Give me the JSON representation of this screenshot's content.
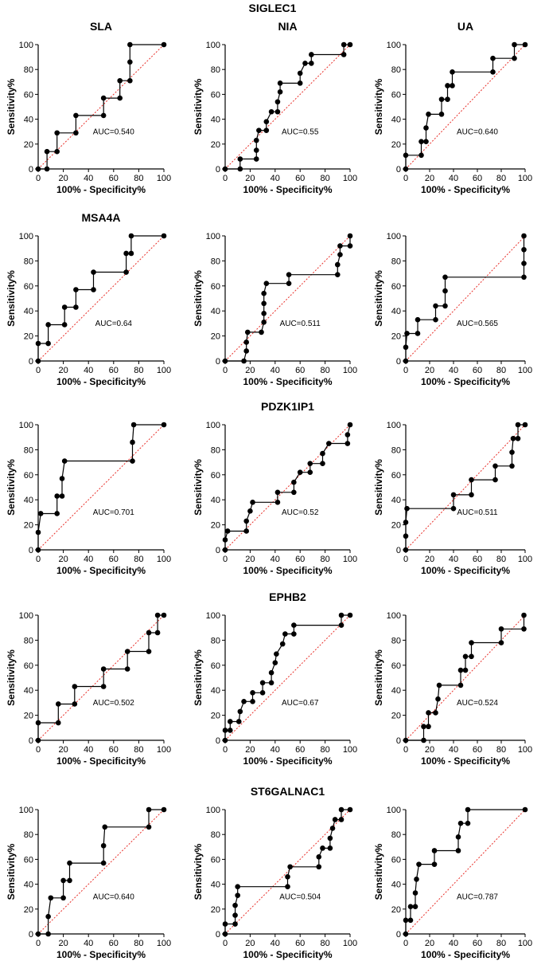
{
  "figure_title": "SIGLEC1",
  "axis": {
    "xlabel": "100% - Specificity%",
    "ylabel": "Sensitivity%",
    "ticks": [
      0,
      20,
      40,
      60,
      80,
      100
    ]
  },
  "colors": {
    "curve": "#000000",
    "reference": "#e8302a"
  },
  "chart_data": [
    {
      "type": "line",
      "row": 0,
      "col": 0,
      "title": "SLA",
      "auc": "AUC=0.540",
      "xlim": [
        0,
        100
      ],
      "ylim": [
        0,
        100
      ],
      "points": [
        [
          0,
          0
        ],
        [
          7,
          0
        ],
        [
          7,
          14
        ],
        [
          15,
          14
        ],
        [
          15,
          29
        ],
        [
          30,
          29
        ],
        [
          30,
          43
        ],
        [
          52,
          43
        ],
        [
          52,
          57
        ],
        [
          65,
          57
        ],
        [
          65,
          71
        ],
        [
          73,
          71
        ],
        [
          73,
          86
        ],
        [
          73,
          100
        ],
        [
          100,
          100
        ]
      ]
    },
    {
      "type": "line",
      "row": 0,
      "col": 1,
      "title": "NIA",
      "auc": "AUC=0.55",
      "xlim": [
        0,
        100
      ],
      "ylim": [
        0,
        100
      ],
      "points": [
        [
          0,
          0
        ],
        [
          12,
          0
        ],
        [
          12,
          8
        ],
        [
          25,
          8
        ],
        [
          25,
          15
        ],
        [
          25,
          23
        ],
        [
          27,
          31
        ],
        [
          33,
          31
        ],
        [
          33,
          38
        ],
        [
          37,
          46
        ],
        [
          42,
          46
        ],
        [
          42,
          54
        ],
        [
          44,
          62
        ],
        [
          44,
          69
        ],
        [
          60,
          69
        ],
        [
          60,
          77
        ],
        [
          64,
          85
        ],
        [
          69,
          85
        ],
        [
          69,
          92
        ],
        [
          95,
          92
        ],
        [
          95,
          100
        ],
        [
          100,
          100
        ]
      ]
    },
    {
      "type": "line",
      "row": 0,
      "col": 2,
      "title": "UA",
      "auc": "AUC=0.640",
      "xlim": [
        0,
        100
      ],
      "ylim": [
        0,
        100
      ],
      "points": [
        [
          0,
          0
        ],
        [
          0,
          11
        ],
        [
          13,
          11
        ],
        [
          13,
          22
        ],
        [
          17,
          22
        ],
        [
          17,
          33
        ],
        [
          19,
          44
        ],
        [
          30,
          44
        ],
        [
          30,
          56
        ],
        [
          35,
          56
        ],
        [
          35,
          67
        ],
        [
          39,
          67
        ],
        [
          39,
          78
        ],
        [
          73,
          78
        ],
        [
          73,
          89
        ],
        [
          91,
          89
        ],
        [
          91,
          100
        ],
        [
          100,
          100
        ]
      ]
    },
    {
      "type": "line",
      "row": 1,
      "col": 0,
      "title": "MSA4A",
      "auc": "AUC=0.64",
      "xlim": [
        0,
        100
      ],
      "ylim": [
        0,
        100
      ],
      "points": [
        [
          0,
          0
        ],
        [
          0,
          14
        ],
        [
          8,
          14
        ],
        [
          8,
          29
        ],
        [
          21,
          29
        ],
        [
          21,
          43
        ],
        [
          30,
          43
        ],
        [
          30,
          57
        ],
        [
          44,
          57
        ],
        [
          44,
          71
        ],
        [
          70,
          71
        ],
        [
          70,
          86
        ],
        [
          74,
          86
        ],
        [
          74,
          100
        ],
        [
          100,
          100
        ]
      ]
    },
    {
      "type": "line",
      "row": 1,
      "col": 1,
      "title": "",
      "auc": "AUC=0.511",
      "xlim": [
        0,
        100
      ],
      "ylim": [
        0,
        100
      ],
      "points": [
        [
          0,
          0
        ],
        [
          15,
          0
        ],
        [
          17,
          8
        ],
        [
          17,
          15
        ],
        [
          18,
          23
        ],
        [
          29,
          23
        ],
        [
          31,
          31
        ],
        [
          31,
          38
        ],
        [
          31,
          46
        ],
        [
          31,
          54
        ],
        [
          33,
          62
        ],
        [
          51,
          62
        ],
        [
          51,
          69
        ],
        [
          90,
          69
        ],
        [
          90,
          77
        ],
        [
          92,
          85
        ],
        [
          92,
          92
        ],
        [
          100,
          92
        ],
        [
          100,
          100
        ]
      ]
    },
    {
      "type": "line",
      "row": 1,
      "col": 2,
      "title": "",
      "auc": "AUC=0.565",
      "xlim": [
        0,
        100
      ],
      "ylim": [
        0,
        100
      ],
      "points": [
        [
          0,
          0
        ],
        [
          0,
          11
        ],
        [
          1,
          22
        ],
        [
          10,
          22
        ],
        [
          10,
          33
        ],
        [
          25,
          33
        ],
        [
          25,
          44
        ],
        [
          33,
          44
        ],
        [
          33,
          56
        ],
        [
          33,
          67
        ],
        [
          99,
          67
        ],
        [
          99,
          78
        ],
        [
          99,
          89
        ],
        [
          99,
          100
        ]
      ]
    },
    {
      "type": "line",
      "row": 2,
      "col": 0,
      "title": "",
      "auc": "AUC=0.701",
      "xlim": [
        0,
        100
      ],
      "ylim": [
        0,
        100
      ],
      "points": [
        [
          0,
          0
        ],
        [
          0,
          14
        ],
        [
          2,
          29
        ],
        [
          15,
          29
        ],
        [
          15,
          43
        ],
        [
          19,
          43
        ],
        [
          19,
          57
        ],
        [
          21,
          71
        ],
        [
          75,
          71
        ],
        [
          75,
          86
        ],
        [
          76,
          100
        ],
        [
          100,
          100
        ]
      ]
    },
    {
      "type": "line",
      "row": 2,
      "col": 1,
      "title": "PDZK1IP1",
      "auc": "AUC=0.52",
      "xlim": [
        0,
        100
      ],
      "ylim": [
        0,
        100
      ],
      "points": [
        [
          0,
          0
        ],
        [
          0,
          8
        ],
        [
          2,
          15
        ],
        [
          17,
          15
        ],
        [
          17,
          23
        ],
        [
          20,
          31
        ],
        [
          22,
          38
        ],
        [
          42,
          38
        ],
        [
          42,
          46
        ],
        [
          55,
          46
        ],
        [
          55,
          54
        ],
        [
          60,
          62
        ],
        [
          68,
          62
        ],
        [
          68,
          69
        ],
        [
          78,
          69
        ],
        [
          78,
          77
        ],
        [
          83,
          85
        ],
        [
          98,
          85
        ],
        [
          98,
          92
        ],
        [
          100,
          100
        ]
      ]
    },
    {
      "type": "line",
      "row": 2,
      "col": 2,
      "title": "",
      "auc": "AUC=0.511",
      "xlim": [
        0,
        100
      ],
      "ylim": [
        0,
        100
      ],
      "points": [
        [
          0,
          0
        ],
        [
          0,
          11
        ],
        [
          0,
          22
        ],
        [
          1,
          33
        ],
        [
          40,
          33
        ],
        [
          40,
          44
        ],
        [
          55,
          44
        ],
        [
          55,
          56
        ],
        [
          75,
          56
        ],
        [
          75,
          67
        ],
        [
          89,
          67
        ],
        [
          89,
          78
        ],
        [
          90,
          89
        ],
        [
          94,
          89
        ],
        [
          94,
          100
        ],
        [
          100,
          100
        ]
      ]
    },
    {
      "type": "line",
      "row": 3,
      "col": 0,
      "title": "",
      "auc": "AUC=0.502",
      "xlim": [
        0,
        100
      ],
      "ylim": [
        0,
        100
      ],
      "points": [
        [
          0,
          0
        ],
        [
          0,
          14
        ],
        [
          16,
          14
        ],
        [
          16,
          29
        ],
        [
          29,
          29
        ],
        [
          29,
          43
        ],
        [
          52,
          43
        ],
        [
          52,
          57
        ],
        [
          71,
          57
        ],
        [
          71,
          71
        ],
        [
          88,
          71
        ],
        [
          88,
          86
        ],
        [
          95,
          86
        ],
        [
          95,
          100
        ],
        [
          100,
          100
        ]
      ]
    },
    {
      "type": "line",
      "row": 3,
      "col": 1,
      "title": "EPHB2",
      "auc": "AUC=0.67",
      "xlim": [
        0,
        100
      ],
      "ylim": [
        0,
        100
      ],
      "points": [
        [
          0,
          0
        ],
        [
          0,
          8
        ],
        [
          4,
          8
        ],
        [
          4,
          15
        ],
        [
          11,
          15
        ],
        [
          12,
          23
        ],
        [
          15,
          31
        ],
        [
          22,
          31
        ],
        [
          22,
          38
        ],
        [
          30,
          38
        ],
        [
          30,
          46
        ],
        [
          37,
          46
        ],
        [
          37,
          54
        ],
        [
          40,
          62
        ],
        [
          41,
          69
        ],
        [
          46,
          77
        ],
        [
          48,
          85
        ],
        [
          55,
          85
        ],
        [
          55,
          92
        ],
        [
          93,
          92
        ],
        [
          93,
          100
        ],
        [
          100,
          100
        ]
      ]
    },
    {
      "type": "line",
      "row": 3,
      "col": 2,
      "title": "",
      "auc": "AUC=0.524",
      "xlim": [
        0,
        100
      ],
      "ylim": [
        0,
        100
      ],
      "points": [
        [
          0,
          0
        ],
        [
          15,
          0
        ],
        [
          15,
          11
        ],
        [
          19,
          11
        ],
        [
          19,
          22
        ],
        [
          25,
          22
        ],
        [
          27,
          33
        ],
        [
          28,
          44
        ],
        [
          46,
          44
        ],
        [
          46,
          56
        ],
        [
          50,
          56
        ],
        [
          50,
          67
        ],
        [
          55,
          67
        ],
        [
          55,
          78
        ],
        [
          80,
          78
        ],
        [
          80,
          89
        ],
        [
          99,
          89
        ],
        [
          99,
          100
        ]
      ]
    },
    {
      "type": "line",
      "row": 4,
      "col": 0,
      "title": "",
      "auc": "AUC=0.640",
      "xlim": [
        0,
        100
      ],
      "ylim": [
        0,
        100
      ],
      "points": [
        [
          0,
          0
        ],
        [
          8,
          0
        ],
        [
          8,
          14
        ],
        [
          10,
          29
        ],
        [
          20,
          29
        ],
        [
          20,
          43
        ],
        [
          25,
          43
        ],
        [
          25,
          57
        ],
        [
          52,
          57
        ],
        [
          52,
          71
        ],
        [
          53,
          86
        ],
        [
          88,
          86
        ],
        [
          88,
          100
        ],
        [
          100,
          100
        ]
      ]
    },
    {
      "type": "line",
      "row": 4,
      "col": 1,
      "title": "ST6GALNAC1",
      "auc": "AUC=0.504",
      "xlim": [
        0,
        100
      ],
      "ylim": [
        0,
        100
      ],
      "points": [
        [
          0,
          0
        ],
        [
          0,
          8
        ],
        [
          8,
          8
        ],
        [
          8,
          15
        ],
        [
          8,
          23
        ],
        [
          10,
          31
        ],
        [
          10,
          38
        ],
        [
          50,
          38
        ],
        [
          50,
          46
        ],
        [
          52,
          54
        ],
        [
          75,
          54
        ],
        [
          75,
          62
        ],
        [
          78,
          69
        ],
        [
          84,
          69
        ],
        [
          84,
          77
        ],
        [
          86,
          85
        ],
        [
          88,
          92
        ],
        [
          93,
          92
        ],
        [
          93,
          100
        ],
        [
          100,
          100
        ]
      ]
    },
    {
      "type": "line",
      "row": 4,
      "col": 2,
      "title": "",
      "auc": "AUC=0.787",
      "xlim": [
        0,
        100
      ],
      "ylim": [
        0,
        100
      ],
      "points": [
        [
          0,
          0
        ],
        [
          0,
          11
        ],
        [
          4,
          11
        ],
        [
          4,
          22
        ],
        [
          8,
          22
        ],
        [
          8,
          33
        ],
        [
          9,
          44
        ],
        [
          11,
          56
        ],
        [
          24,
          56
        ],
        [
          24,
          67
        ],
        [
          44,
          67
        ],
        [
          44,
          78
        ],
        [
          46,
          89
        ],
        [
          52,
          89
        ],
        [
          52,
          100
        ],
        [
          100,
          100
        ]
      ]
    }
  ]
}
